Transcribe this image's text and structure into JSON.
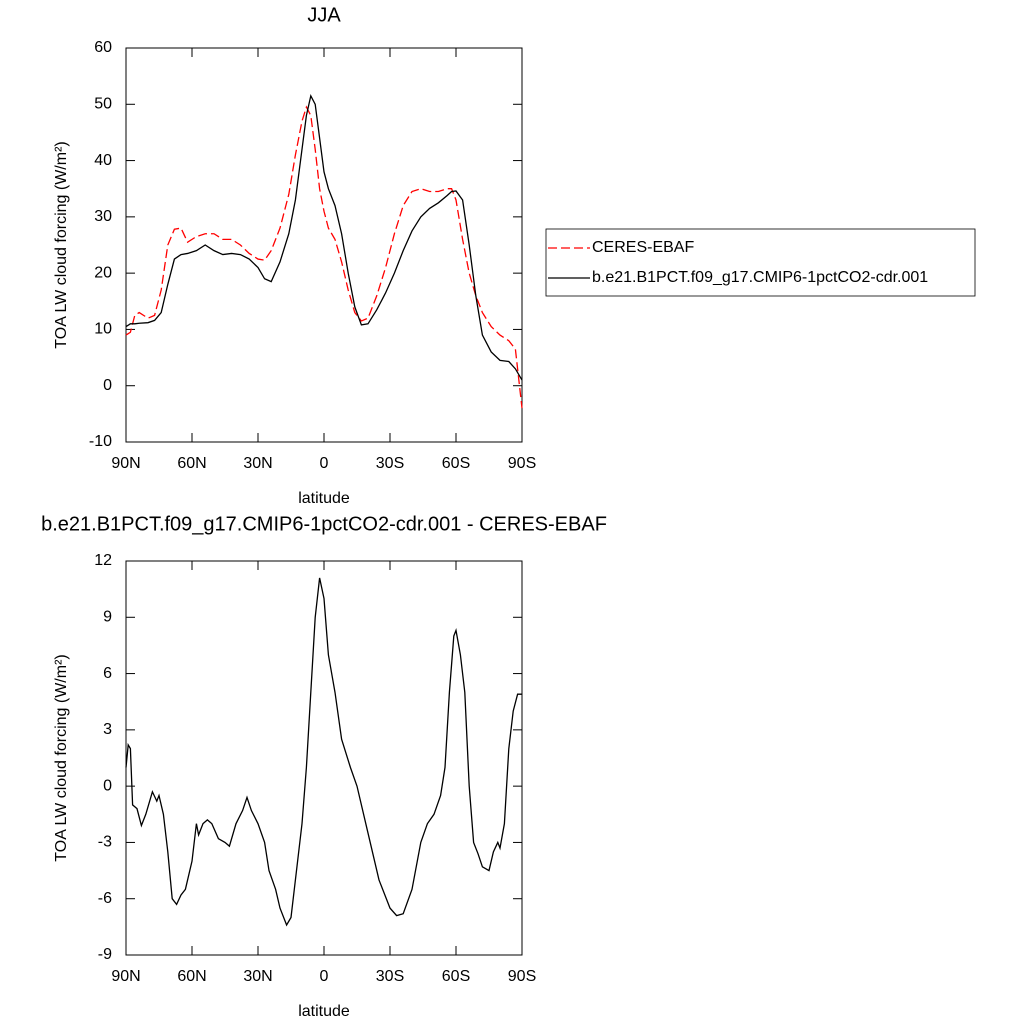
{
  "chart_data": [
    {
      "type": "line",
      "title": "JJA",
      "xlabel": "latitude",
      "ylabel": "TOA LW cloud forcing (W/m²)",
      "x": [
        90,
        88,
        86,
        84,
        80,
        77,
        74,
        71,
        68,
        65,
        62,
        58,
        54,
        50,
        46,
        42,
        38,
        34,
        30,
        27,
        24,
        20,
        16,
        13,
        10,
        8,
        6,
        4,
        2,
        0,
        -2,
        -5,
        -8,
        -11,
        -14,
        -17,
        -20,
        -24,
        -28,
        -32,
        -36,
        -40,
        -44,
        -48,
        -52,
        -56,
        -58,
        -60,
        -63,
        -66,
        -69,
        -72,
        -76,
        -80,
        -84,
        -87,
        -90
      ],
      "series": [
        {
          "name": "CERES-EBAF",
          "color": "#ff0000",
          "dashed": true,
          "values": [
            9,
            9.5,
            12.5,
            13,
            12,
            12.5,
            17,
            25,
            27.8,
            28,
            25.5,
            26.5,
            27,
            27,
            26,
            26,
            25,
            23.5,
            22.5,
            22.3,
            24,
            28,
            34,
            41,
            47,
            49.5,
            48,
            42,
            35,
            31,
            28,
            26,
            22,
            17,
            13,
            11.5,
            12,
            16,
            21,
            27,
            32,
            34.5,
            35,
            34.5,
            34.5,
            35,
            35,
            33,
            26,
            20,
            16,
            13,
            10.5,
            9,
            8,
            6.5,
            -4
          ]
        },
        {
          "name": "b.e21.B1PCT.f09_g17.CMIP6-1pctCO2-cdr.001",
          "color": "#000000",
          "dashed": false,
          "values": [
            10.5,
            11,
            11,
            11.1,
            11.2,
            11.6,
            13,
            18,
            22.5,
            23.3,
            23.5,
            24,
            25,
            24,
            23.3,
            23.5,
            23.3,
            22.5,
            21,
            19,
            18.5,
            22,
            27,
            33,
            42,
            48,
            51.5,
            50,
            44,
            38,
            35,
            32,
            27,
            20,
            14,
            10.8,
            11,
            13.5,
            16.5,
            20,
            24,
            27.5,
            30,
            31.5,
            32.5,
            33.8,
            34.5,
            34.6,
            33,
            25,
            16,
            9,
            6,
            4.5,
            4.3,
            3,
            1
          ]
        }
      ],
      "xlim": [
        90,
        -90
      ],
      "xticks": [
        {
          "value": 90,
          "label": "90N"
        },
        {
          "value": 60,
          "label": "60N"
        },
        {
          "value": 30,
          "label": "30N"
        },
        0,
        {
          "value": -30,
          "label": "30S"
        },
        {
          "value": -60,
          "label": "60S"
        },
        {
          "value": -90,
          "label": "90S"
        }
      ],
      "ylim": [
        -10,
        60
      ],
      "yticks": [
        -10,
        0,
        10,
        20,
        30,
        40,
        50,
        60
      ],
      "legend": "right"
    },
    {
      "type": "line",
      "title": "b.e21.B1PCT.f09_g17.CMIP6-1pctCO2-cdr.001 - CERES-EBAF",
      "xlabel": "latitude",
      "ylabel": "TOA LW cloud forcing (W/m²)",
      "x": [
        90,
        89,
        88,
        87,
        85,
        83,
        81,
        78,
        76,
        75,
        73,
        71,
        69,
        67,
        65,
        63,
        60,
        58,
        57,
        55,
        53,
        51,
        48,
        45,
        43,
        40,
        37,
        35,
        33,
        30,
        27,
        25,
        22,
        20,
        17,
        15,
        13,
        10,
        8,
        6,
        4,
        2,
        0,
        -2,
        -5,
        -8,
        -12,
        -15,
        -20,
        -25,
        -30,
        -33,
        -36,
        -40,
        -44,
        -47,
        -50,
        -53,
        -55,
        -57,
        -59,
        -60,
        -62,
        -64,
        -66,
        -68,
        -70,
        -72,
        -75,
        -77,
        -79,
        -80,
        -82,
        -84,
        -86,
        -88,
        -90
      ],
      "series": [
        {
          "name": "b.e21.B1PCT.f09_g17.CMIP6-1pctCO2-cdr.001 - CERES-EBAF",
          "color": "#000000",
          "dashed": false,
          "values": [
            1,
            2.2,
            2,
            -1,
            -1.2,
            -2.1,
            -1.5,
            -0.3,
            -0.8,
            -0.5,
            -1.5,
            -3.5,
            -6,
            -6.3,
            -5.8,
            -5.5,
            -4,
            -2,
            -2.6,
            -2,
            -1.8,
            -2,
            -2.8,
            -3,
            -3.2,
            -2,
            -1.3,
            -0.6,
            -1.3,
            -2,
            -3,
            -4.5,
            -5.5,
            -6.5,
            -7.4,
            -7,
            -5,
            -2,
            1,
            5,
            9,
            11.1,
            10,
            7,
            5,
            2.5,
            1,
            0,
            -2.5,
            -5,
            -6.5,
            -6.9,
            -6.8,
            -5.5,
            -3,
            -2,
            -1.5,
            -0.5,
            1,
            5,
            8,
            8.3,
            7,
            5,
            0,
            -3,
            -3.6,
            -4.3,
            -4.5,
            -3.5,
            -3,
            -3.3,
            -2,
            2,
            4,
            4.9,
            4.9
          ]
        }
      ],
      "xlim": [
        90,
        -90
      ],
      "xticks": [
        {
          "value": 90,
          "label": "90N"
        },
        {
          "value": 60,
          "label": "60N"
        },
        {
          "value": 30,
          "label": "30N"
        },
        0,
        {
          "value": -30,
          "label": "30S"
        },
        {
          "value": -60,
          "label": "60S"
        },
        {
          "value": -90,
          "label": "90S"
        }
      ],
      "ylim": [
        -9,
        12
      ],
      "yticks": [
        -9,
        -6,
        -3,
        0,
        3,
        6,
        9,
        12
      ]
    }
  ]
}
